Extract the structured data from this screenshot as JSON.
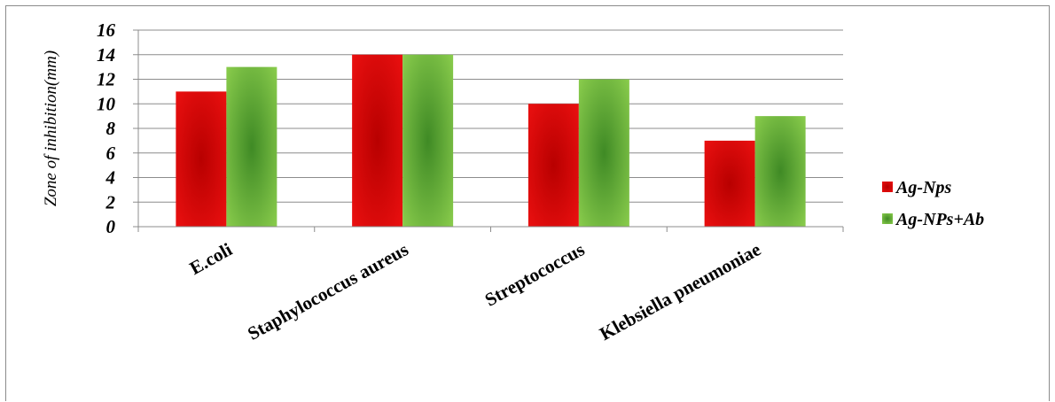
{
  "chart_data": {
    "type": "bar",
    "title": "",
    "xlabel": "",
    "ylabel": "Zone of inhibition(mm)",
    "ylim": [
      0,
      16
    ],
    "yticks": [
      0,
      2,
      4,
      6,
      8,
      10,
      12,
      14,
      16
    ],
    "grid": "horizontal",
    "legend_position": "right",
    "categories": [
      "E.coli",
      "Staphylococcus aureus",
      "Streptococcus",
      "Klebsiella pneumoniae"
    ],
    "series": [
      {
        "name": "Ag-Nps",
        "values": [
          11,
          14,
          10,
          7
        ],
        "color": "#ee1111",
        "shade": "#b80000"
      },
      {
        "name": "Ag-NPs+Ab",
        "values": [
          13,
          14,
          12,
          9
        ],
        "color": "#8fd14f",
        "shade": "#3f8a25"
      }
    ]
  }
}
